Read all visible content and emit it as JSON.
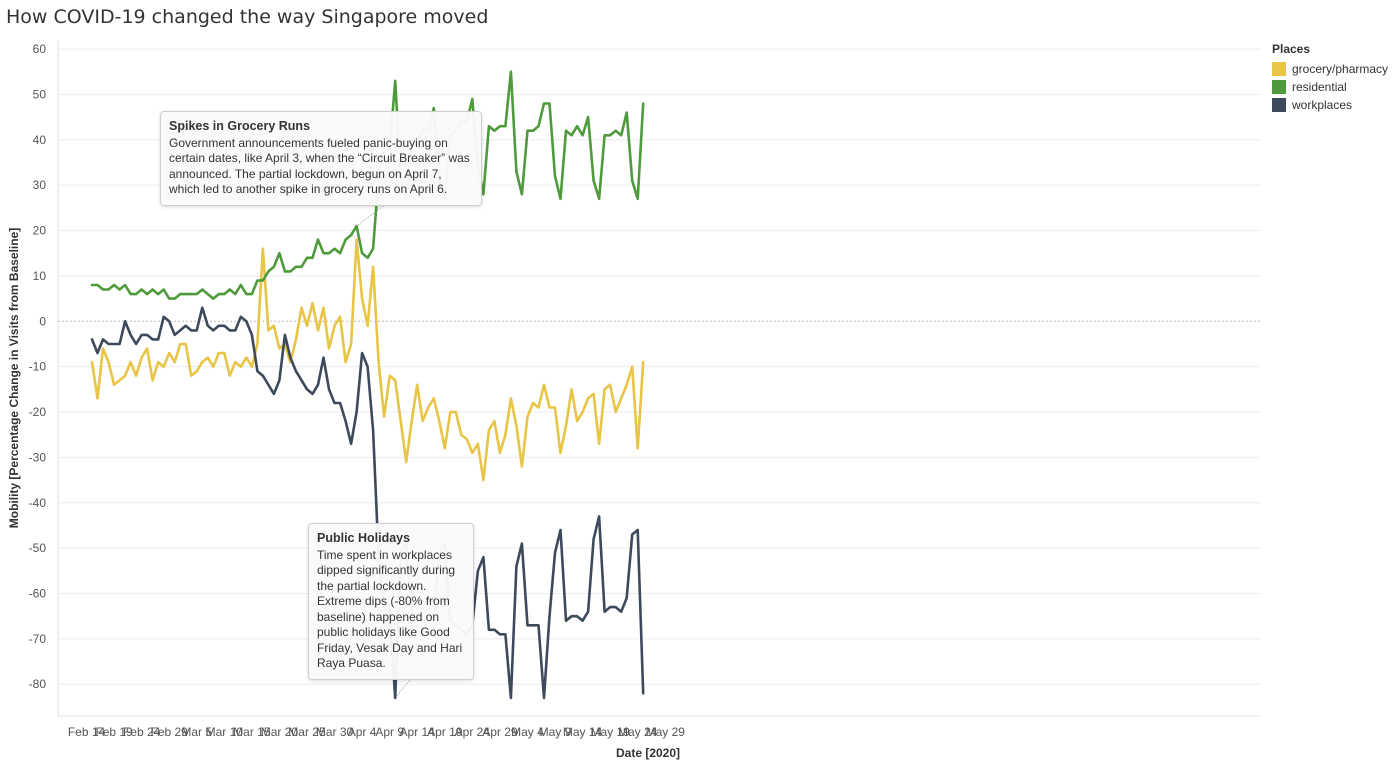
{
  "title": "How COVID-19 changed the way Singapore moved",
  "legend": {
    "title": "Places",
    "items": [
      {
        "name": "grocery/pharmacy",
        "color": "#e8c447"
      },
      {
        "name": "residential",
        "color": "#4e9a3c"
      },
      {
        "name": "workplaces",
        "color": "#3d4a5c"
      }
    ]
  },
  "annotations": {
    "grocery": {
      "title": "Spikes in Grocery Runs",
      "text": "Government announcements fueled panic-buying on certain dates, like April 3, when the “Circuit Breaker” was announced. The partial lockdown, begun on April 7, which led to another spike in grocery runs on April 6."
    },
    "holidays": {
      "title": "Public Holidays",
      "text": "Time spent in workplaces dipped significantly during the partial lockdown. Extreme dips (-80% from baseline) happened on public holidays like Good Friday, Vesak Day and Hari Raya Puasa."
    }
  },
  "chart_data": {
    "type": "line",
    "title": "How COVID-19 changed the way Singapore moved",
    "xlabel": "Date [2020]",
    "ylabel": "Mobility [Percentage Change in Visits from Baseline]",
    "start_date": "2020-02-15",
    "ylim": [
      -87,
      62
    ],
    "yticks": [
      60,
      50,
      40,
      30,
      20,
      10,
      0,
      -10,
      -20,
      -30,
      -40,
      -50,
      -60,
      -70,
      -80
    ],
    "xticks": [
      "Feb 14",
      "Feb 19",
      "Feb 24",
      "Feb 29",
      "Mar 5",
      "Mar 10",
      "Mar 15",
      "Mar 20",
      "Mar 25",
      "Mar 30",
      "Apr 4",
      "Apr 9",
      "Apr 14",
      "Apr 19",
      "Apr 24",
      "Apr 29",
      "May 4",
      "May 9",
      "May 14",
      "May 19",
      "May 24",
      "May 29"
    ],
    "grid": true,
    "legend_position": "top-right",
    "series": [
      {
        "name": "grocery/pharmacy",
        "color": "#e8c447",
        "values": [
          -9,
          -17,
          -6,
          -9,
          -14,
          -13,
          -12,
          -9,
          -12,
          -8,
          -6,
          -13,
          -9,
          -10,
          -7,
          -9,
          -5,
          -5,
          -12,
          -11,
          -9,
          -8,
          -10,
          -7,
          -7,
          -12,
          -9,
          -10,
          -8,
          -10,
          -5,
          16,
          -2,
          -1,
          -6,
          -5,
          -9,
          -4,
          3,
          -1,
          4,
          -2,
          3,
          -6,
          -1,
          1,
          -9,
          -5,
          18,
          5,
          -1,
          12,
          -9,
          -21,
          -12,
          -13,
          -22,
          -31,
          -22,
          -14,
          -22,
          -19,
          -17,
          -22,
          -28,
          -20,
          -20,
          -25,
          -26,
          -29,
          -27,
          -35,
          -24,
          -22,
          -29,
          -25,
          -17,
          -23,
          -32,
          -21,
          -18,
          -19,
          -14,
          -19,
          -19,
          -29,
          -23,
          -15,
          -22,
          -20,
          -17,
          -16,
          -27,
          -15,
          -14,
          -20,
          -17,
          -14,
          -10,
          -28,
          -9
        ]
      },
      {
        "name": "residential",
        "color": "#4e9a3c",
        "values": [
          8,
          8,
          7,
          7,
          8,
          7,
          8,
          6,
          6,
          7,
          6,
          7,
          6,
          7,
          5,
          5,
          6,
          6,
          6,
          6,
          7,
          6,
          5,
          6,
          6,
          7,
          6,
          8,
          6,
          6,
          9,
          9,
          11,
          12,
          15,
          11,
          11,
          12,
          12,
          14,
          14,
          18,
          15,
          15,
          16,
          15,
          18,
          19,
          21,
          15,
          14,
          16,
          32,
          39,
          38,
          53,
          32,
          27,
          40,
          40,
          42,
          42,
          47,
          32,
          27,
          41,
          42,
          44,
          44,
          49,
          34,
          28,
          43,
          42,
          43,
          43,
          55,
          33,
          28,
          42,
          42,
          43,
          48,
          48,
          32,
          27,
          42,
          41,
          43,
          41,
          45,
          31,
          27,
          41,
          41,
          42,
          41,
          46,
          31,
          27,
          48
        ]
      },
      {
        "name": "workplaces",
        "color": "#3d4a5c",
        "values": [
          -4,
          -7,
          -4,
          -5,
          -5,
          -5,
          0,
          -3,
          -5,
          -3,
          -3,
          -4,
          -4,
          1,
          0,
          -3,
          -2,
          -1,
          -2,
          -2,
          3,
          -1,
          -2,
          -1,
          -1,
          -2,
          -2,
          1,
          0,
          -3,
          -11,
          -12,
          -14,
          -16,
          -13,
          -3,
          -8,
          -11,
          -13,
          -15,
          -16,
          -14,
          -8,
          -15,
          -18,
          -18,
          -22,
          -27,
          -20,
          -7,
          -10,
          -24,
          -52,
          -63,
          -64,
          -83,
          -51,
          -49,
          -64,
          -65,
          -66,
          -66,
          -65,
          -51,
          -49,
          -66,
          -67,
          -68,
          -69,
          -67,
          -55,
          -52,
          -68,
          -68,
          -69,
          -69,
          -83,
          -54,
          -49,
          -67,
          -67,
          -67,
          -83,
          -65,
          -51,
          -46,
          -66,
          -65,
          -65,
          -66,
          -64,
          -48,
          -43,
          -64,
          -63,
          -63,
          -64,
          -61,
          -47,
          -46,
          -82
        ]
      }
    ],
    "annotation_targets": [
      {
        "annotation": "grocery",
        "date": "2020-04-03",
        "value": 21
      },
      {
        "annotation": "holidays",
        "date": "2020-04-10",
        "value": -83
      }
    ]
  }
}
